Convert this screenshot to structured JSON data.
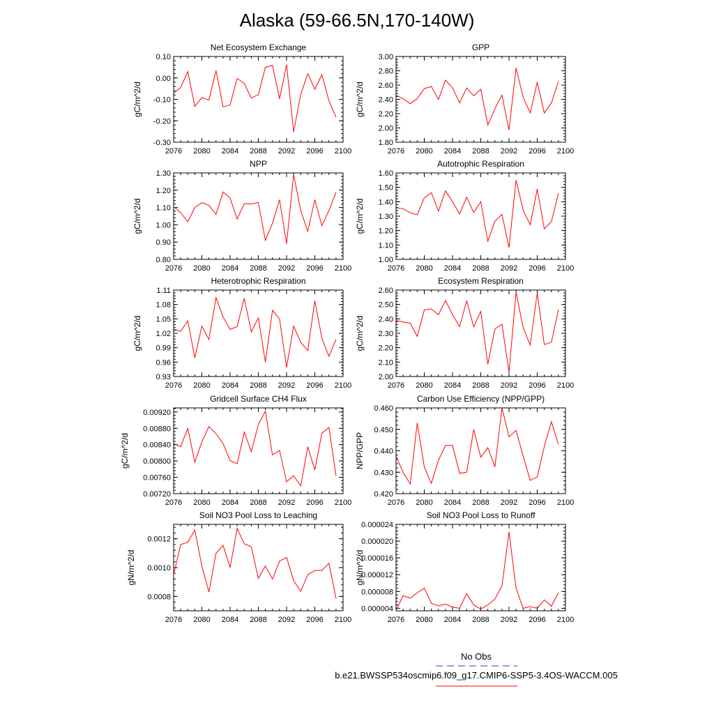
{
  "page": {
    "title": "Alaska (59-66.5N,170-140W)",
    "legend": {
      "obs_label": "No Obs",
      "model_label": "b.e21.BWSSP534oscmip6.f09_g17.CMIP6-SSP5-3.4OS-WACCM.005",
      "obs_color": "#3333cc",
      "model_color": "#ff0000"
    }
  },
  "chart_data": [
    {
      "type": "line",
      "title": "Net Ecosystem Exchange",
      "ylabel": "gC/m^2/d",
      "xlim": [
        2076,
        2100
      ],
      "x_ticks": [
        "2076",
        "2080",
        "2084",
        "2088",
        "2092",
        "2096",
        "2100"
      ],
      "ylim": [
        -0.3,
        0.1
      ],
      "y_ticks": [
        "0.10",
        "0.00",
        "-0.10",
        "-0.20",
        "-0.30"
      ],
      "y_tick_values": [
        0.1,
        0.0,
        -0.1,
        -0.2,
        -0.3
      ],
      "x": [
        2076,
        2077,
        2078,
        2079,
        2080,
        2081,
        2082,
        2083,
        2084,
        2085,
        2086,
        2087,
        2088,
        2089,
        2090,
        2091,
        2092,
        2093,
        2094,
        2095,
        2096,
        2097,
        2098,
        2099
      ],
      "series": [
        {
          "values": [
            -0.072,
            -0.045,
            0.03,
            -0.133,
            -0.092,
            -0.103,
            0.035,
            -0.135,
            -0.126,
            -0.002,
            -0.026,
            -0.094,
            -0.078,
            0.05,
            0.058,
            -0.097,
            0.062,
            -0.252,
            -0.077,
            0.02,
            -0.053,
            0.015,
            -0.107,
            -0.183
          ],
          "color": "#ff0000"
        }
      ]
    },
    {
      "type": "line",
      "title": "GPP",
      "ylabel": "gC/m^2/d",
      "xlim": [
        2076,
        2100
      ],
      "x_ticks": [
        "2076",
        "2080",
        "2084",
        "2088",
        "2092",
        "2096",
        "2100"
      ],
      "ylim": [
        1.8,
        3.0
      ],
      "y_ticks": [
        "3.00",
        "2.80",
        "2.60",
        "2.40",
        "2.20",
        "2.00",
        "1.80"
      ],
      "y_tick_values": [
        3.0,
        2.8,
        2.6,
        2.4,
        2.2,
        2.0,
        1.8
      ],
      "x": [
        2076,
        2077,
        2078,
        2079,
        2080,
        2081,
        2082,
        2083,
        2084,
        2085,
        2086,
        2087,
        2088,
        2089,
        2090,
        2091,
        2092,
        2093,
        2094,
        2095,
        2096,
        2097,
        2098,
        2099
      ],
      "series": [
        {
          "values": [
            2.46,
            2.41,
            2.34,
            2.41,
            2.55,
            2.58,
            2.4,
            2.67,
            2.56,
            2.35,
            2.56,
            2.45,
            2.54,
            2.04,
            2.27,
            2.46,
            1.97,
            2.84,
            2.43,
            2.21,
            2.64,
            2.21,
            2.35,
            2.65
          ],
          "color": "#ff0000"
        }
      ]
    },
    {
      "type": "line",
      "title": "NPP",
      "ylabel": "gC/m^2/d",
      "xlim": [
        2076,
        2100
      ],
      "x_ticks": [
        "2076",
        "2080",
        "2084",
        "2088",
        "2092",
        "2096",
        "2100"
      ],
      "ylim": [
        0.8,
        1.3
      ],
      "y_ticks": [
        "1.30",
        "1.20",
        "1.10",
        "1.00",
        "0.90",
        "0.80"
      ],
      "y_tick_values": [
        1.3,
        1.2,
        1.1,
        1.0,
        0.9,
        0.8
      ],
      "x": [
        2076,
        2077,
        2078,
        2079,
        2080,
        2081,
        2082,
        2083,
        2084,
        2085,
        2086,
        2087,
        2088,
        2089,
        2090,
        2091,
        2092,
        2093,
        2094,
        2095,
        2096,
        2097,
        2098,
        2099
      ],
      "series": [
        {
          "values": [
            1.105,
            1.07,
            1.017,
            1.1,
            1.128,
            1.113,
            1.06,
            1.19,
            1.155,
            1.033,
            1.122,
            1.12,
            1.13,
            0.91,
            1.01,
            1.145,
            0.89,
            1.292,
            1.082,
            0.962,
            1.145,
            0.995,
            1.082,
            1.188
          ],
          "color": "#ff0000"
        }
      ]
    },
    {
      "type": "line",
      "title": "Autotrophic Respiration",
      "ylabel": "gC/m^2/d",
      "xlim": [
        2076,
        2100
      ],
      "x_ticks": [
        "2076",
        "2080",
        "2084",
        "2088",
        "2092",
        "2096",
        "2100"
      ],
      "ylim": [
        1.0,
        1.6
      ],
      "y_ticks": [
        "1.60",
        "1.50",
        "1.40",
        "1.30",
        "1.20",
        "1.10",
        "1.00"
      ],
      "y_tick_values": [
        1.6,
        1.5,
        1.4,
        1.3,
        1.2,
        1.1,
        1.0
      ],
      "x": [
        2076,
        2077,
        2078,
        2079,
        2080,
        2081,
        2082,
        2083,
        2084,
        2085,
        2086,
        2087,
        2088,
        2089,
        2090,
        2091,
        2092,
        2093,
        2094,
        2095,
        2096,
        2097,
        2098,
        2099
      ],
      "series": [
        {
          "values": [
            1.358,
            1.352,
            1.323,
            1.31,
            1.427,
            1.463,
            1.335,
            1.475,
            1.4,
            1.315,
            1.432,
            1.325,
            1.4,
            1.125,
            1.265,
            1.312,
            1.082,
            1.55,
            1.342,
            1.24,
            1.488,
            1.212,
            1.262,
            1.458
          ],
          "color": "#ff0000"
        }
      ]
    },
    {
      "type": "line",
      "title": "Heterotrophic Respiration",
      "ylabel": "gC/m^2/d",
      "xlim": [
        2076,
        2100
      ],
      "x_ticks": [
        "2076",
        "2080",
        "2084",
        "2088",
        "2092",
        "2096",
        "2100"
      ],
      "ylim": [
        0.93,
        1.11
      ],
      "y_ticks": [
        "1.11",
        "1.08",
        "1.05",
        "1.02",
        "0.99",
        "0.96",
        "0.93"
      ],
      "y_tick_values": [
        1.11,
        1.08,
        1.05,
        1.02,
        0.99,
        0.96,
        0.93
      ],
      "x": [
        2076,
        2077,
        2078,
        2079,
        2080,
        2081,
        2082,
        2083,
        2084,
        2085,
        2086,
        2087,
        2088,
        2089,
        2090,
        2091,
        2092,
        2093,
        2094,
        2095,
        2096,
        2097,
        2098,
        2099
      ],
      "series": [
        {
          "values": [
            1.029,
            1.024,
            1.046,
            0.969,
            1.035,
            1.007,
            1.094,
            1.054,
            1.028,
            1.034,
            1.093,
            1.023,
            1.052,
            0.96,
            1.068,
            1.05,
            0.949,
            1.035,
            1.001,
            0.984,
            1.088,
            1.01,
            0.972,
            1.007
          ],
          "color": "#ff0000"
        }
      ]
    },
    {
      "type": "line",
      "title": "Ecosystem Respiration",
      "ylabel": "gC/m^2/d",
      "xlim": [
        2076,
        2100
      ],
      "x_ticks": [
        "2076",
        "2080",
        "2084",
        "2088",
        "2092",
        "2096",
        "2100"
      ],
      "ylim": [
        2.0,
        2.6
      ],
      "y_ticks": [
        "2.60",
        "2.50",
        "2.40",
        "2.30",
        "2.20",
        "2.10",
        "2.00"
      ],
      "y_tick_values": [
        2.6,
        2.5,
        2.4,
        2.3,
        2.2,
        2.1,
        2.0
      ],
      "x": [
        2076,
        2077,
        2078,
        2079,
        2080,
        2081,
        2082,
        2083,
        2084,
        2085,
        2086,
        2087,
        2088,
        2089,
        2090,
        2091,
        2092,
        2093,
        2094,
        2095,
        2096,
        2097,
        2098,
        2099
      ],
      "series": [
        {
          "values": [
            2.39,
            2.378,
            2.37,
            2.278,
            2.462,
            2.47,
            2.428,
            2.528,
            2.43,
            2.346,
            2.525,
            2.345,
            2.452,
            2.085,
            2.33,
            2.362,
            2.03,
            2.585,
            2.34,
            2.218,
            2.58,
            2.222,
            2.238,
            2.465
          ],
          "color": "#ff0000"
        }
      ]
    },
    {
      "type": "line",
      "title": "Gridcell Surface CH4 Flux",
      "ylabel": "gC/m^2/d",
      "xlim": [
        2076,
        2100
      ],
      "x_ticks": [
        "2076",
        "2080",
        "2084",
        "2088",
        "2092",
        "2096",
        "2100"
      ],
      "ylim": [
        0.0072,
        0.0093
      ],
      "y_ticks": [
        "0.00920",
        "0.00880",
        "0.00840",
        "0.00800",
        "0.00760",
        "0.00720"
      ],
      "y_tick_values": [
        0.0092,
        0.0088,
        0.0084,
        0.008,
        0.0076,
        0.0072
      ],
      "x": [
        2076,
        2077,
        2078,
        2079,
        2080,
        2081,
        2082,
        2083,
        2084,
        2085,
        2086,
        2087,
        2088,
        2089,
        2090,
        2091,
        2092,
        2093,
        2094,
        2095,
        2096,
        2097,
        2098,
        2099
      ],
      "series": [
        {
          "values": [
            0.00843,
            0.00835,
            0.0088,
            0.00797,
            0.00847,
            0.00884,
            0.00867,
            0.00843,
            0.00801,
            0.00793,
            0.00871,
            0.00823,
            0.00889,
            0.00922,
            0.00815,
            0.00826,
            0.00749,
            0.00764,
            0.00739,
            0.00835,
            0.00778,
            0.00868,
            0.00882,
            0.00764
          ],
          "color": "#ff0000"
        }
      ]
    },
    {
      "type": "line",
      "title": "Carbon Use Efficiency (NPP/GPP)",
      "ylabel": "NPP/GPP",
      "xlim": [
        2076,
        2100
      ],
      "x_ticks": [
        "2076",
        "2080",
        "2084",
        "2088",
        "2092",
        "2096",
        "2100"
      ],
      "ylim": [
        0.42,
        0.46
      ],
      "y_ticks": [
        "0.460",
        "0.450",
        "0.440",
        "0.430",
        "0.420"
      ],
      "y_tick_values": [
        0.46,
        0.45,
        0.44,
        0.43,
        0.42
      ],
      "x": [
        2076,
        2077,
        2078,
        2079,
        2080,
        2081,
        2082,
        2083,
        2084,
        2085,
        2086,
        2087,
        2088,
        2089,
        2090,
        2091,
        2092,
        2093,
        2094,
        2095,
        2096,
        2097,
        2098,
        2099
      ],
      "series": [
        {
          "values": [
            0.4375,
            0.43,
            0.4245,
            0.453,
            0.4325,
            0.4248,
            0.4355,
            0.4425,
            0.4425,
            0.4295,
            0.43,
            0.45,
            0.437,
            0.4415,
            0.4325,
            0.46,
            0.4465,
            0.4495,
            0.4375,
            0.4262,
            0.4278,
            0.442,
            0.4535,
            0.443
          ],
          "color": "#ff0000"
        }
      ]
    },
    {
      "type": "line",
      "title": "Soil NO3 Pool Loss to Leaching",
      "ylabel": "gN/m^2/d",
      "xlim": [
        2076,
        2100
      ],
      "x_ticks": [
        "2076",
        "2080",
        "2084",
        "2088",
        "2092",
        "2096",
        "2100"
      ],
      "ylim": [
        0.0007,
        0.0013
      ],
      "y_ticks": [
        "0.0012",
        "0.0010",
        "0.0008"
      ],
      "y_tick_values": [
        0.0012,
        0.001,
        0.0008
      ],
      "x": [
        2076,
        2077,
        2078,
        2079,
        2080,
        2081,
        2082,
        2083,
        2084,
        2085,
        2086,
        2087,
        2088,
        2089,
        2090,
        2091,
        2092,
        2093,
        2094,
        2095,
        2096,
        2097,
        2098,
        2099
      ],
      "series": [
        {
          "values": [
            0.00095,
            0.00116,
            0.001175,
            0.00126,
            0.00101,
            0.00083,
            0.0011,
            0.001155,
            0.001,
            0.001272,
            0.001165,
            0.001145,
            0.000925,
            0.00101,
            0.00092,
            0.001045,
            0.00107,
            0.00091,
            0.000835,
            0.00095,
            0.00098,
            0.00098,
            0.00103,
            0.000785
          ],
          "color": "#ff0000"
        }
      ]
    },
    {
      "type": "line",
      "title": "Soil NO3 Pool Loss to Runoff",
      "ylabel": "gN/m^2/d",
      "xlim": [
        2076,
        2100
      ],
      "x_ticks": [
        "2076",
        "2080",
        "2084",
        "2088",
        "2092",
        "2096",
        "2100"
      ],
      "ylim": [
        3.4e-06,
        2.4e-05
      ],
      "y_ticks": [
        "0.000024",
        "0.000020",
        "0.000016",
        "0.000012",
        "0.000008",
        "0.000004"
      ],
      "y_tick_values": [
        2.4e-05,
        2e-05,
        1.6e-05,
        1.2e-05,
        8e-06,
        4e-06
      ],
      "x": [
        2076,
        2077,
        2078,
        2079,
        2080,
        2081,
        2082,
        2083,
        2084,
        2085,
        2086,
        2087,
        2088,
        2089,
        2090,
        2091,
        2092,
        2093,
        2094,
        2095,
        2096,
        2097,
        2098,
        2099
      ],
      "series": [
        {
          "values": [
            3.5e-06,
            7e-06,
            6.4e-06,
            7.7e-06,
            8.8e-06,
            5.2e-06,
            4.6e-06,
            5e-06,
            4.3e-06,
            4e-06,
            7.5e-06,
            4.8e-06,
            3.8e-06,
            4.8e-06,
            6.2e-06,
            9.3e-06,
            2.22e-05,
            8.8e-06,
            4e-06,
            4.4e-06,
            4e-06,
            6e-06,
            4.5e-06,
            7.7e-06
          ],
          "color": "#ff0000"
        }
      ]
    }
  ]
}
